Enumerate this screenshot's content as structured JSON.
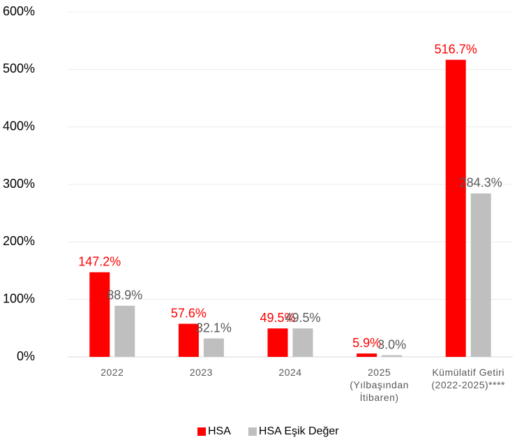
{
  "chart_data": {
    "type": "bar",
    "categories": [
      "2022",
      "2023",
      "2024",
      "2025\n(Yılbaşından\nİtibaren)",
      "Kümülatif Getiri\n(2022-2025)****"
    ],
    "series": [
      {
        "name": "HSA",
        "color": "#ff0000",
        "values": [
          147.2,
          57.6,
          49.5,
          5.9,
          516.7
        ],
        "value_labels": [
          "147.2%",
          "57.6%",
          "49.5%",
          "5.9%",
          "516.7%"
        ]
      },
      {
        "name": "HSA Eşik Değer",
        "color": "#bfbfbf",
        "values": [
          88.9,
          32.1,
          49.5,
          3.0,
          284.3
        ],
        "value_labels": [
          "88.9%",
          "32.1%",
          "49.5%",
          "3.0%",
          "284.3%"
        ]
      }
    ],
    "ylim": [
      0,
      600
    ],
    "yticks": [
      {
        "value": 0,
        "label": "0%"
      },
      {
        "value": 100,
        "label": "100%"
      },
      {
        "value": 200,
        "label": "200%"
      },
      {
        "value": 300,
        "label": "300%"
      },
      {
        "value": 400,
        "label": "400%"
      },
      {
        "value": 500,
        "label": "500%"
      },
      {
        "value": 600,
        "label": "600%"
      }
    ],
    "grid": true,
    "legend": "bottom"
  }
}
